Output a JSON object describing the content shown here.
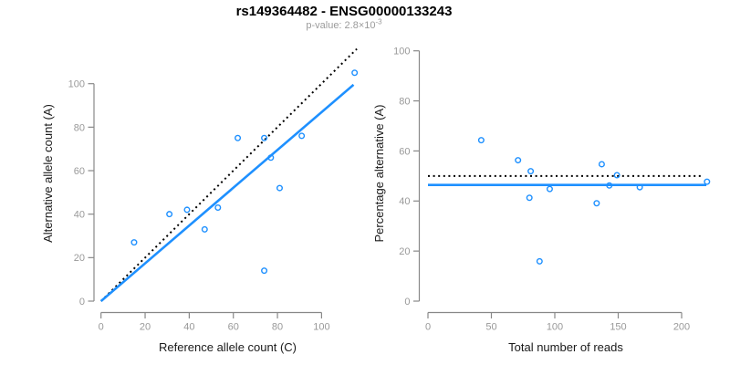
{
  "header": {
    "title": "rs149364482 - ENSG00000133243",
    "subtitle_base": "p-value: 2.8×10",
    "subtitle_exponent": "-3"
  },
  "colors": {
    "accent_blue": "#1E90FF",
    "reference_black": "#000000",
    "axis": "#888888",
    "tick_label": "#999999",
    "axis_title": "#1a1a1a"
  },
  "chart_data": [
    {
      "type": "scatter",
      "name": "allele-counts",
      "xlabel": "Reference allele count (C)",
      "ylabel": "Alternative allele count (A)",
      "xticks": [
        0,
        20,
        40,
        60,
        80,
        100
      ],
      "yticks": [
        0,
        20,
        40,
        60,
        80,
        100
      ],
      "xlim": [
        0,
        116
      ],
      "ylim": [
        0,
        112
      ],
      "grid": false,
      "legend": "none",
      "points": [
        [
          15,
          27
        ],
        [
          31,
          40
        ],
        [
          39,
          42
        ],
        [
          47,
          33
        ],
        [
          53,
          43
        ],
        [
          62,
          75
        ],
        [
          74,
          14
        ],
        [
          74,
          75
        ],
        [
          77,
          66
        ],
        [
          81,
          52
        ],
        [
          91,
          76
        ],
        [
          115,
          105
        ]
      ],
      "lines": [
        {
          "name": "identity-line",
          "style": "dotted",
          "color": "#000000",
          "from": [
            0,
            0
          ],
          "to": [
            116,
            116
          ]
        },
        {
          "name": "fit-line",
          "style": "solid",
          "color": "#1E90FF",
          "from": [
            0,
            0
          ],
          "to": [
            114.5,
            99.5
          ]
        }
      ]
    },
    {
      "type": "scatter",
      "name": "percentage-vs-coverage",
      "xlabel": "Total number of reads",
      "ylabel": "Percentage alternative (A)",
      "xticks": [
        0,
        50,
        100,
        150,
        200
      ],
      "yticks": [
        0,
        20,
        40,
        60,
        80,
        100
      ],
      "xlim": [
        0,
        222
      ],
      "ylim": [
        0,
        100
      ],
      "grid": false,
      "legend": "none",
      "points": [
        [
          42,
          64.3
        ],
        [
          71,
          56.3
        ],
        [
          81,
          51.9
        ],
        [
          80,
          41.3
        ],
        [
          96,
          44.8
        ],
        [
          137,
          54.7
        ],
        [
          88,
          15.9
        ],
        [
          149,
          50.3
        ],
        [
          143,
          46.2
        ],
        [
          133,
          39.1
        ],
        [
          167,
          45.5
        ],
        [
          220,
          47.7
        ]
      ],
      "lines": [
        {
          "name": "reference-line",
          "style": "dotted",
          "color": "#000000",
          "from": [
            0,
            50
          ],
          "to": [
            215,
            50
          ]
        },
        {
          "name": "fit-line",
          "style": "solid",
          "color": "#1E90FF",
          "from": [
            0,
            46.4
          ],
          "to": [
            219.5,
            46.4
          ]
        }
      ]
    }
  ]
}
